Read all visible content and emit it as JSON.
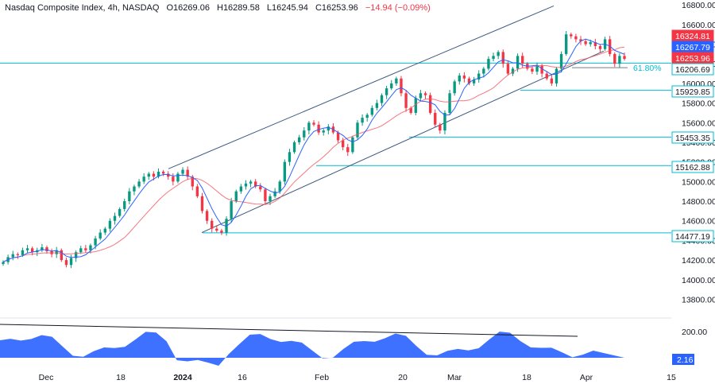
{
  "header": {
    "symbol": "Nasdaq Composite Index, 4h, NASDAQ",
    "open": "O16269.06",
    "high": "H16289.58",
    "low": "L16245.94",
    "close": "C16253.96",
    "change": "−14.94 (−0.09%)"
  },
  "colors": {
    "up": "#089981",
    "down": "#f23645",
    "ma_fast": "#2962ff",
    "ma_slow": "#f7525f",
    "level": "#00bcd4",
    "channel": "#3d5a80",
    "oscillator": "#2962ff"
  },
  "chart_data": [
    {
      "type": "candlestick",
      "y_ticks": [
        "16800.00",
        "16600.00",
        "16400.00",
        "16200.00",
        "16000.00",
        "15800.00",
        "15600.00",
        "15400.00",
        "15200.00",
        "15000.00",
        "14800.00",
        "14600.00",
        "14400.00",
        "14200.00",
        "14000.00",
        "13800.00"
      ],
      "ylim": [
        13650,
        16850
      ],
      "x_ticks": [
        "Dec",
        "18",
        "2024",
        "16",
        "Feb",
        "20",
        "Mar",
        "18",
        "Apr",
        "15"
      ],
      "price_tags": [
        {
          "label": "16324.81",
          "value": 16324.81,
          "style": "down"
        },
        {
          "label": "16267.79",
          "value": 16267.79,
          "style": "ma_fast"
        },
        {
          "label": "16253.96",
          "value": 16253.96,
          "style": "down"
        },
        {
          "label": "16206.69",
          "value": 16206.69,
          "style": "level"
        },
        {
          "label": "15929.85",
          "value": 15929.85,
          "style": "level"
        },
        {
          "label": "15453.35",
          "value": 15453.35,
          "style": "level"
        },
        {
          "label": "15162.88",
          "value": 15162.88,
          "style": "level"
        },
        {
          "label": "14477.19",
          "value": 14477.19,
          "style": "level"
        }
      ],
      "fib_label": "61.80%",
      "close_series": [
        14180,
        14230,
        14260,
        14250,
        14300,
        14320,
        14280,
        14300,
        14330,
        14290,
        14260,
        14300,
        14200,
        14150,
        14220,
        14280,
        14320,
        14300,
        14350,
        14420,
        14480,
        14520,
        14600,
        14650,
        14720,
        14800,
        14900,
        14950,
        15000,
        15050,
        15080,
        15050,
        15100,
        15080,
        15050,
        15000,
        15080,
        15120,
        15050,
        14950,
        14850,
        14700,
        14600,
        14520,
        14500,
        14480,
        14620,
        14800,
        14900,
        14950,
        14980,
        15000,
        14950,
        14920,
        14800,
        14850,
        14900,
        15000,
        15200,
        15300,
        15400,
        15450,
        15520,
        15600,
        15580,
        15500,
        15520,
        15560,
        15500,
        15420,
        15350,
        15300,
        15450,
        15600,
        15650,
        15680,
        15750,
        15800,
        15880,
        15950,
        16000,
        16050,
        15900,
        15750,
        15700,
        15850,
        15900,
        15880,
        15700,
        15580,
        15520,
        15700,
        15900,
        16020,
        16080,
        16050,
        16000,
        16040,
        16100,
        16150,
        16250,
        16280,
        16320,
        16200,
        16100,
        16150,
        16280,
        16200,
        16150,
        16120,
        16180,
        16100,
        16050,
        16000,
        16150,
        16300,
        16500,
        16480,
        16450,
        16430,
        16400,
        16420,
        16380,
        16350,
        16450,
        16300,
        16200,
        16280,
        16250
      ],
      "oscillator": {
        "label": "200.00",
        "value_label": "2.16"
      }
    }
  ]
}
